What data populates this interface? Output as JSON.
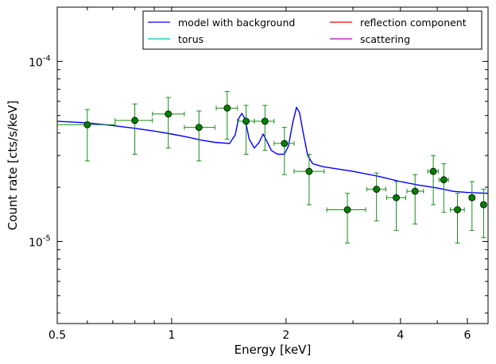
{
  "chart_data": {
    "type": "scatter",
    "xlabel": "Energy [keV]",
    "ylabel": "Count rate [cts/s/keV]",
    "xscale": "log",
    "yscale": "log",
    "xlim": [
      0.5,
      6.8
    ],
    "ylim": [
      3.5e-06,
      0.0002
    ],
    "x_ticks": [
      {
        "value": 0.5,
        "label": "0.5"
      },
      {
        "value": 1,
        "label": "1"
      },
      {
        "value": 2,
        "label": "2"
      },
      {
        "value": 4,
        "label": "4"
      },
      {
        "value": 6,
        "label": "6"
      }
    ],
    "y_ticks": [
      {
        "value": 1e-05,
        "base": "10",
        "exp": "-5"
      },
      {
        "value": 0.0001,
        "base": "10",
        "exp": "-4"
      }
    ],
    "legend": {
      "placement": "top-right",
      "columns": 2,
      "entries": [
        {
          "label": "model with background",
          "color": "#0000ff"
        },
        {
          "label": "torus",
          "color": "#00bfbf"
        },
        {
          "label": "reflection component",
          "color": "#ff0000"
        },
        {
          "label": "scattering",
          "color": "#bf00bf"
        }
      ]
    },
    "series": [
      {
        "name": "model with background",
        "kind": "line",
        "color": "#0000ff",
        "points": [
          [
            0.5,
            4.65e-05
          ],
          [
            0.55,
            4.6e-05
          ],
          [
            0.6,
            4.55e-05
          ],
          [
            0.7,
            4.4e-05
          ],
          [
            0.8,
            4.25e-05
          ],
          [
            0.9,
            4.1e-05
          ],
          [
            1.0,
            3.95e-05
          ],
          [
            1.1,
            3.8e-05
          ],
          [
            1.2,
            3.65e-05
          ],
          [
            1.3,
            3.55e-05
          ],
          [
            1.42,
            3.5e-05
          ],
          [
            1.47,
            3.9e-05
          ],
          [
            1.5,
            4.8e-05
          ],
          [
            1.53,
            5.15e-05
          ],
          [
            1.56,
            4.8e-05
          ],
          [
            1.6,
            3.7e-05
          ],
          [
            1.65,
            3.3e-05
          ],
          [
            1.7,
            3.55e-05
          ],
          [
            1.74,
            3.95e-05
          ],
          [
            1.78,
            3.6e-05
          ],
          [
            1.83,
            3.2e-05
          ],
          [
            1.9,
            3.05e-05
          ],
          [
            1.98,
            3.05e-05
          ],
          [
            2.03,
            3.4e-05
          ],
          [
            2.08,
            4.5e-05
          ],
          [
            2.13,
            5.55e-05
          ],
          [
            2.17,
            5.2e-05
          ],
          [
            2.22,
            4e-05
          ],
          [
            2.28,
            3e-05
          ],
          [
            2.35,
            2.7e-05
          ],
          [
            2.5,
            2.6e-05
          ],
          [
            3.0,
            2.45e-05
          ],
          [
            3.5,
            2.3e-05
          ],
          [
            4.0,
            2.15e-05
          ],
          [
            4.5,
            2.05e-05
          ],
          [
            5.0,
            1.98e-05
          ],
          [
            5.5,
            1.9e-05
          ],
          [
            6.0,
            1.87e-05
          ],
          [
            6.8,
            1.85e-05
          ]
        ]
      },
      {
        "name": "torus",
        "kind": "line",
        "color": "#00bfbf",
        "points": []
      },
      {
        "name": "reflection component",
        "kind": "line",
        "color": "#ff0000",
        "points": []
      },
      {
        "name": "scattering",
        "kind": "line",
        "color": "#bf00bf",
        "points": []
      },
      {
        "name": "data",
        "kind": "errorbar",
        "marker_color": "#008000",
        "points": [
          {
            "x": 0.6,
            "xlo": 0.5,
            "xhi": 0.71,
            "y": 4.45e-05,
            "ylo": 2.8e-05,
            "yhi": 5.4e-05
          },
          {
            "x": 0.8,
            "xlo": 0.71,
            "xhi": 0.89,
            "y": 4.7e-05,
            "ylo": 3.05e-05,
            "yhi": 5.8e-05
          },
          {
            "x": 0.98,
            "xlo": 0.89,
            "xhi": 1.08,
            "y": 5.1e-05,
            "ylo": 3.3e-05,
            "yhi": 6.3e-05
          },
          {
            "x": 1.18,
            "xlo": 1.08,
            "xhi": 1.3,
            "y": 4.3e-05,
            "ylo": 2.8e-05,
            "yhi": 5.3e-05
          },
          {
            "x": 1.4,
            "xlo": 1.31,
            "xhi": 1.49,
            "y": 5.5e-05,
            "ylo": 3.7e-05,
            "yhi": 6.8e-05
          },
          {
            "x": 1.57,
            "xlo": 1.49,
            "xhi": 1.65,
            "y": 4.65e-05,
            "ylo": 3.05e-05,
            "yhi": 5.7e-05
          },
          {
            "x": 1.76,
            "xlo": 1.65,
            "xhi": 1.86,
            "y": 4.65e-05,
            "ylo": 3.2e-05,
            "yhi": 5.7e-05
          },
          {
            "x": 1.98,
            "xlo": 1.86,
            "xhi": 2.1,
            "y": 3.5e-05,
            "ylo": 2.35e-05,
            "yhi": 4.3e-05
          },
          {
            "x": 2.3,
            "xlo": 2.1,
            "xhi": 2.52,
            "y": 2.45e-05,
            "ylo": 1.6e-05,
            "yhi": 3.05e-05
          },
          {
            "x": 2.9,
            "xlo": 2.56,
            "xhi": 3.24,
            "y": 1.5e-05,
            "ylo": 9.8e-06,
            "yhi": 1.85e-05
          },
          {
            "x": 3.46,
            "xlo": 3.26,
            "xhi": 3.66,
            "y": 1.95e-05,
            "ylo": 1.3e-05,
            "yhi": 2.4e-05
          },
          {
            "x": 3.9,
            "xlo": 3.68,
            "xhi": 4.13,
            "y": 1.75e-05,
            "ylo": 1.15e-05,
            "yhi": 2.15e-05
          },
          {
            "x": 4.37,
            "xlo": 4.16,
            "xhi": 4.6,
            "y": 1.9e-05,
            "ylo": 1.25e-05,
            "yhi": 2.35e-05
          },
          {
            "x": 4.88,
            "xlo": 4.72,
            "xhi": 5.03,
            "y": 2.45e-05,
            "ylo": 1.6e-05,
            "yhi": 3e-05
          },
          {
            "x": 5.2,
            "xlo": 5.05,
            "xhi": 5.35,
            "y": 2.2e-05,
            "ylo": 1.45e-05,
            "yhi": 2.7e-05
          },
          {
            "x": 5.65,
            "xlo": 5.41,
            "xhi": 5.89,
            "y": 1.5e-05,
            "ylo": 9.8e-06,
            "yhi": 1.85e-05
          },
          {
            "x": 6.17,
            "xlo": 6.07,
            "xhi": 6.27,
            "y": 1.75e-05,
            "ylo": 1.15e-05,
            "yhi": 2.15e-05
          },
          {
            "x": 6.62,
            "xlo": 6.52,
            "xhi": 6.72,
            "y": 1.6e-05,
            "ylo": 1.05e-05,
            "yhi": 1.95e-05
          }
        ]
      }
    ]
  }
}
